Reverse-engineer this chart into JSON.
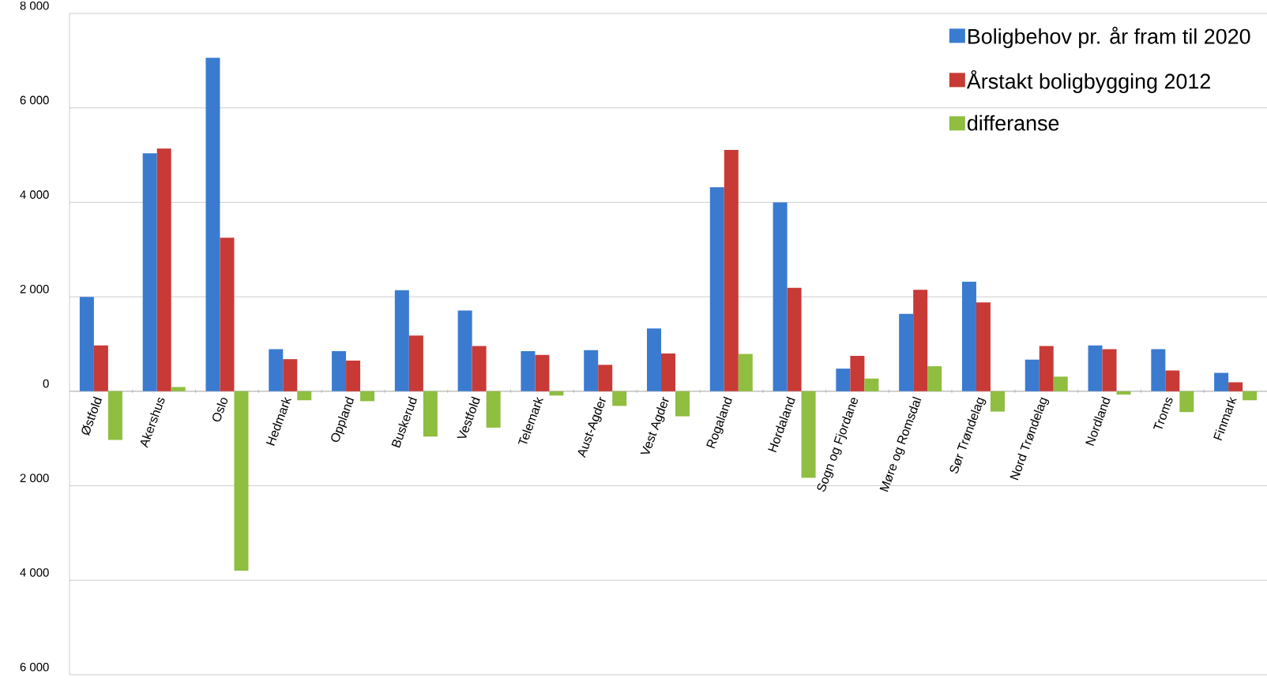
{
  "chart_data": {
    "type": "bar",
    "categories": [
      "Østfold",
      "Akershus",
      "Oslo",
      "Hedmark",
      "Oppland",
      "Buskerud",
      "Vestfold",
      "Telemark",
      "Aust-Agder",
      "Vest Agder",
      "Rogaland",
      "Hordaland",
      "Sogn og Fjordane",
      "Møre og Romsdal",
      "Sør Trøndelag",
      "Nord Trøndelag",
      "Nordland",
      "Troms",
      "Finmark"
    ],
    "series": [
      {
        "name": "Boligbehov pr. år fram til 2020",
        "color": "#3a7bd0",
        "values": [
          2000,
          5040,
          7060,
          890,
          850,
          2140,
          1710,
          850,
          870,
          1330,
          4320,
          4000,
          480,
          1640,
          2320,
          670,
          970,
          890,
          390
        ]
      },
      {
        "name": "Årstakt boligbygging 2012",
        "color": "#c83a36",
        "values": [
          970,
          5140,
          3250,
          680,
          650,
          1180,
          960,
          770,
          560,
          800,
          5110,
          2190,
          750,
          2150,
          1880,
          960,
          890,
          440,
          190
        ]
      },
      {
        "name": "differanse",
        "color": "#8fbe40",
        "values": [
          -1030,
          90,
          -3800,
          -190,
          -210,
          -960,
          -770,
          -90,
          -310,
          -530,
          790,
          -1830,
          270,
          530,
          -430,
          310,
          -70,
          -440,
          -190
        ]
      }
    ],
    "ylim": [
      -6000,
      8000
    ],
    "yticks": [
      {
        "value": -6000,
        "label": "6 000"
      },
      {
        "value": -4000,
        "label": "4 000"
      },
      {
        "value": -2000,
        "label": "2 000"
      },
      0,
      {
        "value": 2000,
        "label": "2 000"
      },
      {
        "value": 4000,
        "label": "4 000"
      },
      {
        "value": 6000,
        "label": "6 000"
      },
      {
        "value": 8000,
        "label": "8 000"
      }
    ],
    "grid": "y",
    "legend": "top right"
  }
}
